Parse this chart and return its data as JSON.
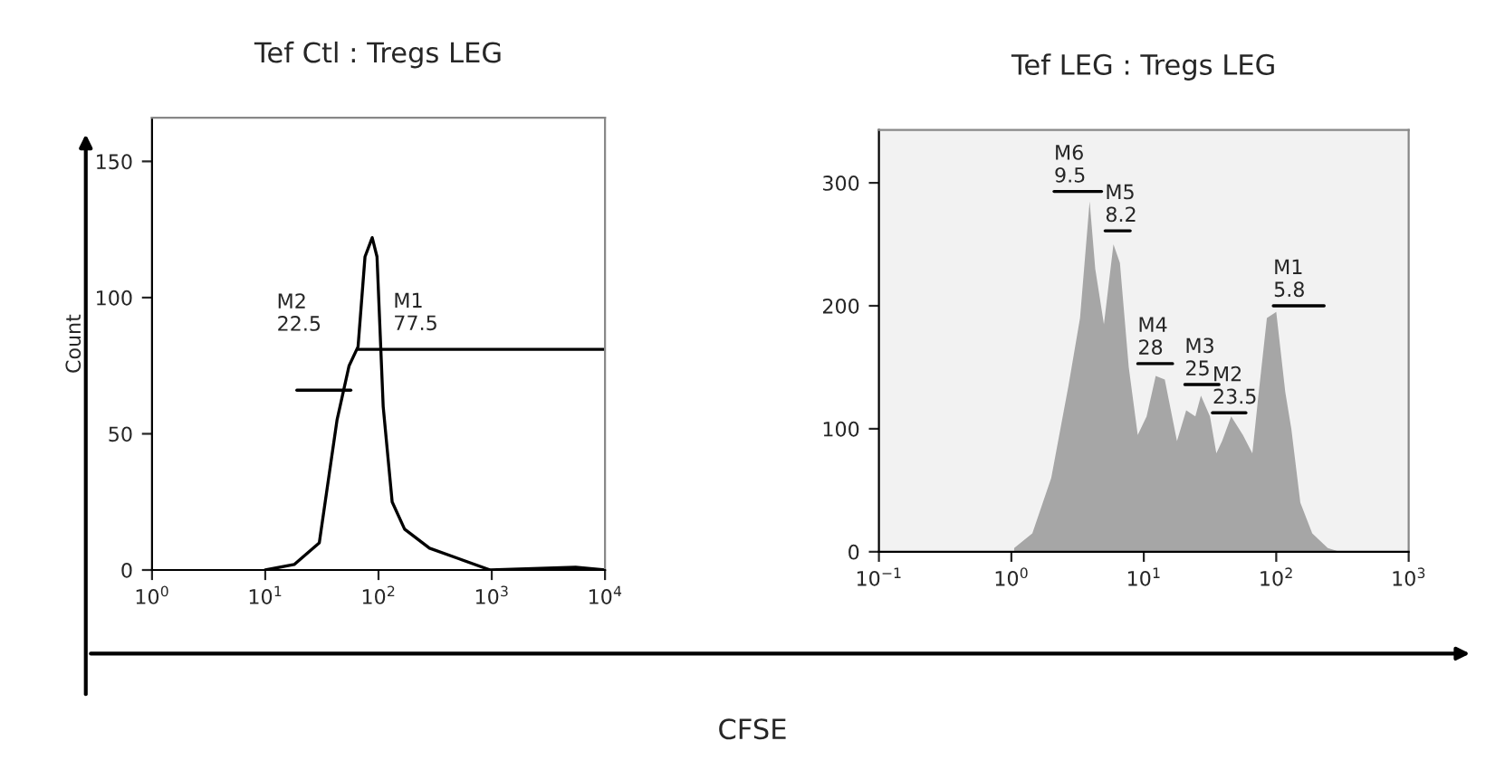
{
  "chart_data": [
    {
      "type": "line",
      "title": "Tef Ctl : Tregs LEG",
      "ylabel": "Count",
      "log": "x",
      "xlim": [
        1,
        10000
      ],
      "ylim": [
        0,
        166
      ],
      "xticks": [
        {
          "value": 1,
          "label": "10$^{0}$"
        },
        {
          "value": 10,
          "label": "10$^{1}$"
        },
        {
          "value": 100,
          "label": "10$^{2}$"
        },
        {
          "value": 1000,
          "label": "10$^{3}$"
        },
        {
          "value": 10000,
          "label": "10$^{4}$"
        }
      ],
      "yticks": [
        0,
        50,
        100,
        150
      ],
      "grid": false,
      "series": [
        {
          "color": "#000000",
          "x": [
            10,
            18,
            30,
            43,
            55,
            66,
            76,
            88,
            97,
            110,
            132,
            170,
            282,
            525,
            970,
            5500,
            10000
          ],
          "values": [
            0,
            2,
            10,
            55,
            75,
            82,
            115,
            122,
            115,
            60,
            25,
            15,
            8,
            4,
            0,
            1,
            0
          ]
        },
        {
          "type": "line",
          "color": "#000000",
          "x": [
            66,
            10000
          ],
          "values": [
            81,
            81
          ]
        },
        {
          "type": "line",
          "color": "#000000",
          "x": [
            19,
            57
          ],
          "values": [
            66,
            66
          ]
        }
      ],
      "annotations": [
        {
          "text": "M1\n77.5",
          "x": 66,
          "y": 81
        },
        {
          "text": "M2\n22.5",
          "x": 19,
          "y": 66
        }
      ]
    },
    {
      "type": "area",
      "title": "Tef LEG : Tregs LEG",
      "log": "x",
      "xlim": [
        0.1,
        1000
      ],
      "ylim": [
        0,
        343
      ],
      "xticks": [
        {
          "value": 0.1,
          "label": "10$^{−1}$"
        },
        {
          "value": 1,
          "label": "10$^{0}$"
        },
        {
          "value": 10,
          "label": "10$^{1}$"
        },
        {
          "value": 100,
          "label": "10$^{2}$"
        },
        {
          "value": 1000,
          "label": "10$^{3}$"
        }
      ],
      "yticks": [
        0,
        100,
        200,
        300
      ],
      "grid": false,
      "series": [
        {
          "color": "#a6a6a6",
          "x": [
            1.05,
            1.44,
            2.0,
            2.7,
            3.3,
            3.9,
            4.3,
            5.0,
            5.9,
            6.6,
            7.7,
            9.0,
            10.5,
            12.3,
            14.4,
            17.8,
            20.9,
            24.5,
            27,
            31.6,
            35.3,
            39,
            45.7,
            56,
            66,
            73,
            85,
            100,
            117,
            130,
            152,
            187,
            245,
            300
          ],
          "values": [
            3,
            15,
            60,
            135,
            190,
            285,
            230,
            185,
            250,
            235,
            150,
            95,
            110,
            143,
            140,
            90,
            115,
            110,
            127,
            110,
            80,
            90,
            110,
            95,
            80,
            125,
            190,
            195,
            130,
            100,
            40,
            15,
            3,
            0
          ]
        },
        {
          "type": "line",
          "color": "#000000",
          "x": [
            2.1,
            4.8
          ],
          "values": [
            293,
            293
          ]
        },
        {
          "type": "line",
          "color": "#000000",
          "x": [
            5.1,
            7.9
          ],
          "values": [
            261,
            261
          ]
        },
        {
          "type": "line",
          "color": "#000000",
          "x": [
            9.0,
            16.5
          ],
          "values": [
            153,
            153
          ]
        },
        {
          "type": "line",
          "color": "#000000",
          "x": [
            20.4,
            37
          ],
          "values": [
            136,
            136
          ]
        },
        {
          "type": "line",
          "color": "#000000",
          "x": [
            33,
            59
          ],
          "values": [
            113,
            113
          ]
        },
        {
          "type": "line",
          "color": "#000000",
          "x": [
            95,
            230
          ],
          "values": [
            200,
            200
          ]
        }
      ],
      "annotations": [
        {
          "text": "M6\n9.5",
          "x": 2.1,
          "y": 293
        },
        {
          "text": "M5\n8.2",
          "x": 5.1,
          "y": 261
        },
        {
          "text": "M4\n28",
          "x": 9.0,
          "y": 153
        },
        {
          "text": "M3\n25",
          "x": 20.4,
          "y": 136
        },
        {
          "text": "M2\n23.5",
          "x": 33,
          "y": 113
        },
        {
          "text": "M1\n5.8",
          "x": 95,
          "y": 200
        },
        "CFSE"
      ]
    }
  ]
}
